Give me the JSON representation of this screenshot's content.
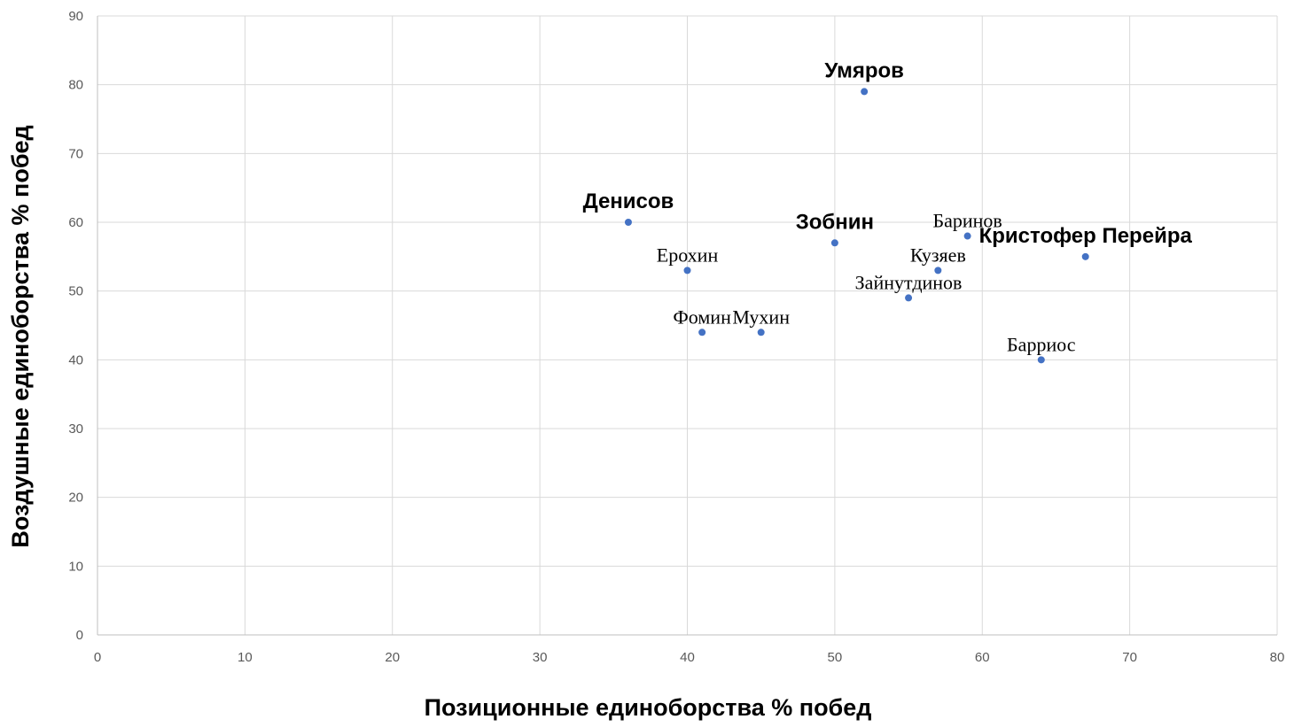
{
  "chart_data": {
    "type": "scatter",
    "xlabel": "Позиционные единоборства % побед",
    "ylabel": "Воздушные единоборства % побед",
    "xlim": [
      0,
      80
    ],
    "ylim": [
      0,
      90
    ],
    "x_ticks": [
      0,
      10,
      20,
      30,
      40,
      50,
      60,
      70,
      80
    ],
    "y_ticks": [
      0,
      10,
      20,
      30,
      40,
      50,
      60,
      70,
      80,
      90
    ],
    "grid": true,
    "marker_color": "#4472c4",
    "points": [
      {
        "label": "Умяров",
        "x": 52,
        "y": 79,
        "bold": true
      },
      {
        "label": "Денисов",
        "x": 36,
        "y": 60,
        "bold": true
      },
      {
        "label": "Зобнин",
        "x": 50,
        "y": 57,
        "bold": true
      },
      {
        "label": "Баринов",
        "x": 59,
        "y": 58,
        "bold": false
      },
      {
        "label": "Кристофер Перейра",
        "x": 67,
        "y": 55,
        "bold": true
      },
      {
        "label": "Ерохин",
        "x": 40,
        "y": 53,
        "bold": false
      },
      {
        "label": "Кузяев",
        "x": 57,
        "y": 53,
        "bold": false
      },
      {
        "label": "Зайнутдинов",
        "x": 55,
        "y": 49,
        "bold": false
      },
      {
        "label": "Фомин",
        "x": 41,
        "y": 44,
        "bold": false
      },
      {
        "label": "Мухин",
        "x": 45,
        "y": 44,
        "bold": false
      },
      {
        "label": "Барриос",
        "x": 64,
        "y": 40,
        "bold": false
      }
    ]
  }
}
